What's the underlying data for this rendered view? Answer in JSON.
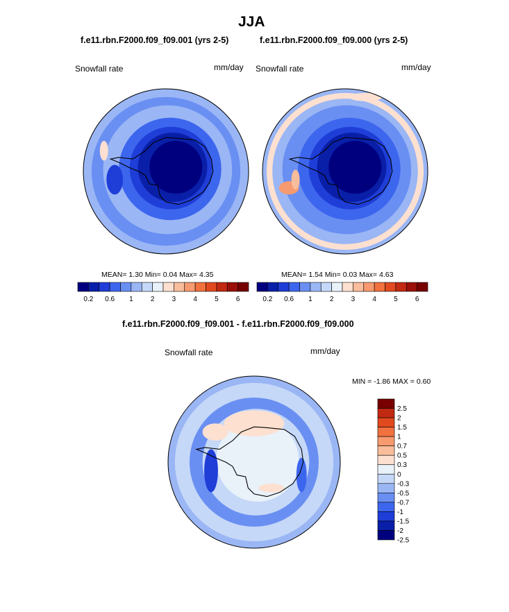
{
  "page": {
    "title": "JJA",
    "diff_title": "f.e11.rbn.F2000.f09_f09.001 - f.e11.rbn.F2000.f09_f09.000"
  },
  "colors": {
    "scale": [
      "#00007f",
      "#0a1fa8",
      "#1f3ed8",
      "#3d66ee",
      "#6a8ff2",
      "#9ab6f5",
      "#c5d8f7",
      "#e9f1f9",
      "#fde0d0",
      "#f9bd9c",
      "#f79a6f",
      "#f1713f",
      "#e14a1f",
      "#c22912",
      "#9a1008",
      "#780000"
    ],
    "diff_scale": [
      "#00007f",
      "#0a1fa8",
      "#1f3ed8",
      "#3d66ee",
      "#6a8ff2",
      "#9ab6f5",
      "#c5d8f7",
      "#e9f1f9",
      "#fde0d0",
      "#f9bd9c",
      "#f79a6f",
      "#f1713f",
      "#e14a1f",
      "#c22912",
      "#780000"
    ]
  },
  "chart_data": [
    {
      "type": "heatmap",
      "projection": "polar-stereographic (south pole)",
      "title": "f.e11.rbn.F2000.f09_f09.001 (yrs 2-5)",
      "variable": "Snowfall rate",
      "units": "mm/day",
      "stats": {
        "mean_label": "MEAN=",
        "mean": "1.30",
        "min_label": "Min=",
        "min": "0.04",
        "max_label": "Max=",
        "max": "4.35"
      },
      "colorbar_ticks": [
        "0.2",
        "0.6",
        "1",
        "2",
        "3",
        "4",
        "5",
        "6"
      ],
      "contour_levels": [
        0.2,
        0.4,
        0.6,
        0.8,
        1,
        1.5,
        2,
        2.5,
        3,
        3.5,
        4,
        4.5,
        5,
        5.5,
        6
      ]
    },
    {
      "type": "heatmap",
      "projection": "polar-stereographic (south pole)",
      "title": "f.e11.rbn.F2000.f09_f09.000 (yrs 2-5)",
      "variable": "Snowfall rate",
      "units": "mm/day",
      "stats": {
        "mean_label": "MEAN=",
        "mean": "1.54",
        "min_label": "Min=",
        "min": "0.03",
        "max_label": "Max=",
        "max": "4.63"
      },
      "colorbar_ticks": [
        "0.2",
        "0.6",
        "1",
        "2",
        "3",
        "4",
        "5",
        "6"
      ],
      "contour_levels": [
        0.2,
        0.4,
        0.6,
        0.8,
        1,
        1.5,
        2,
        2.5,
        3,
        3.5,
        4,
        4.5,
        5,
        5.5,
        6
      ]
    },
    {
      "type": "heatmap",
      "projection": "polar-stereographic (south pole)",
      "title": "f.e11.rbn.F2000.f09_f09.001 - f.e11.rbn.F2000.f09_f09.000",
      "variable": "Snowfall rate",
      "units": "mm/day",
      "stats": {
        "min_label": "MIN =",
        "min": "-1.86",
        "max_label": "MAX =",
        "max": "0.60"
      },
      "colorbar_ticks": [
        "2.5",
        "2",
        "1.5",
        "1",
        "0.7",
        "0.5",
        "0.3",
        "0",
        "-0.3",
        "-0.5",
        "-0.7",
        "-1",
        "-1.5",
        "-2",
        "-2.5"
      ],
      "contour_levels": [
        -2.5,
        -2,
        -1.5,
        -1,
        -0.7,
        -0.5,
        -0.3,
        0,
        0.3,
        0.5,
        0.7,
        1,
        1.5,
        2,
        2.5
      ]
    }
  ]
}
